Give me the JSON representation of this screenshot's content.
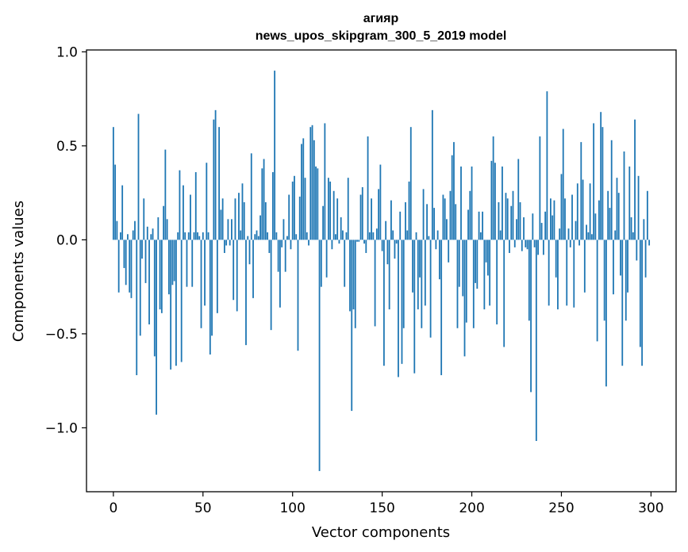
{
  "chart_data": {
    "type": "bar",
    "title": "агияр",
    "subtitle": "news_upos_skipgram_300_5_2019 model",
    "xlabel": "Vector components",
    "ylabel": "Components values",
    "xlim": [
      -15,
      314
    ],
    "ylim": [
      -1.34,
      1.01
    ],
    "xticks": [
      0,
      50,
      100,
      150,
      200,
      250,
      300
    ],
    "xtick_labels": [
      "0",
      "50",
      "100",
      "150",
      "200",
      "250",
      "300"
    ],
    "yticks": [
      -1.0,
      -0.5,
      0.0,
      0.5,
      1.0
    ],
    "ytick_labels": [
      "−1.0",
      "−0.5",
      "0.0",
      "0.5",
      "1.0"
    ],
    "bar_color": "#1f77b4",
    "grid": false,
    "values": [
      0.6,
      0.4,
      0.1,
      -0.28,
      0.04,
      0.29,
      -0.15,
      -0.24,
      0.03,
      -0.28,
      -0.31,
      0.05,
      0.1,
      -0.72,
      0.67,
      -0.51,
      -0.1,
      0.22,
      -0.23,
      0.07,
      -0.45,
      0.03,
      0.06,
      -0.62,
      -0.93,
      0.12,
      -0.37,
      -0.39,
      0.18,
      0.48,
      0.11,
      -0.29,
      -0.69,
      -0.24,
      -0.22,
      -0.67,
      0.04,
      0.37,
      -0.65,
      0.29,
      0.04,
      -0.25,
      0.04,
      0.24,
      -0.25,
      0.04,
      0.36,
      0.04,
      0.02,
      -0.47,
      0.04,
      -0.35,
      0.41,
      0.04,
      -0.61,
      -0.51,
      0.64,
      0.69,
      -0.39,
      0.6,
      0.16,
      0.22,
      -0.07,
      -0.03,
      0.11,
      -0.03,
      0.11,
      -0.32,
      0.22,
      -0.38,
      0.25,
      0.05,
      0.3,
      0.2,
      -0.56,
      0.02,
      -0.13,
      0.46,
      -0.31,
      0.03,
      0.05,
      0.02,
      0.13,
      0.38,
      0.43,
      0.2,
      0.04,
      -0.07,
      -0.48,
      0.36,
      0.9,
      0.04,
      -0.17,
      -0.36,
      -0.04,
      0.11,
      -0.17,
      0.02,
      0.24,
      -0.05,
      0.31,
      0.34,
      0.03,
      -0.59,
      0.23,
      0.51,
      0.54,
      0.33,
      0.04,
      -0.03,
      0.6,
      0.61,
      0.53,
      0.39,
      0.38,
      -1.23,
      -0.25,
      0.18,
      0.62,
      -0.2,
      0.33,
      0.31,
      -0.05,
      0.26,
      0.03,
      0.22,
      -0.02,
      0.12,
      0.05,
      -0.25,
      0.04,
      0.33,
      -0.38,
      -0.91,
      -0.37,
      -0.47,
      -0.01,
      -0.01,
      0.24,
      0.28,
      -0.02,
      -0.07,
      0.55,
      0.04,
      0.22,
      0.04,
      -0.46,
      0.06,
      0.27,
      0.4,
      -0.06,
      -0.67,
      0.1,
      -0.13,
      -0.37,
      0.21,
      0.05,
      -0.1,
      -0.02,
      -0.73,
      0.15,
      -0.66,
      -0.47,
      0.2,
      0.05,
      0.31,
      0.6,
      -0.28,
      -0.71,
      0.04,
      -0.37,
      -0.2,
      -0.47,
      0.27,
      -0.35,
      0.19,
      0.02,
      -0.52,
      0.69,
      0.17,
      -0.05,
      0.05,
      -0.21,
      -0.72,
      0.24,
      0.22,
      0.11,
      -0.12,
      0.26,
      0.45,
      0.52,
      0.19,
      -0.47,
      -0.25,
      0.39,
      -0.3,
      -0.62,
      -0.44,
      0.16,
      0.26,
      0.39,
      -0.47,
      -0.23,
      -0.26,
      0.15,
      0.04,
      0.15,
      -0.37,
      -0.12,
      -0.19,
      -0.35,
      0.42,
      0.55,
      0.41,
      -0.45,
      0.2,
      0.05,
      0.39,
      -0.57,
      0.25,
      0.22,
      -0.07,
      0.18,
      0.26,
      -0.04,
      0.11,
      0.43,
      0.2,
      -0.06,
      0.12,
      -0.04,
      -0.05,
      -0.43,
      -0.81,
      0.14,
      -0.04,
      -1.07,
      -0.08,
      0.55,
      0.09,
      -0.08,
      0.15,
      0.79,
      -0.35,
      0.22,
      0.13,
      0.21,
      -0.2,
      -0.37,
      0.06,
      0.35,
      0.59,
      0.22,
      -0.35,
      0.06,
      -0.04,
      0.24,
      -0.36,
      0.1,
      0.3,
      -0.03,
      0.52,
      0.32,
      -0.28,
      0.08,
      0.04,
      0.3,
      0.03,
      0.62,
      0.14,
      -0.54,
      0.21,
      0.68,
      0.6,
      -0.43,
      -0.78,
      0.26,
      0.17,
      0.53,
      -0.29,
      0.05,
      0.33,
      0.25,
      -0.19,
      -0.67,
      0.47,
      -0.43,
      -0.28,
      0.39,
      0.12,
      0.04,
      0.64,
      -0.11,
      0.34,
      -0.57,
      -0.67,
      0.11,
      -0.2,
      0.26,
      -0.03
    ]
  }
}
